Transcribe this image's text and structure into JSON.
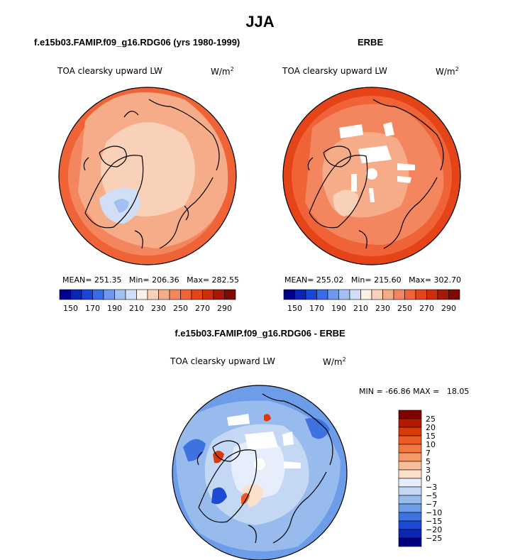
{
  "season_title": "JJA",
  "panels": [
    {
      "title": "f.e15b03.FAMIP.f09_g16.RDG06 (yrs 1980-1999)",
      "variable": "TOA clearsky upward LW",
      "units": "W/m",
      "units_exp": "2",
      "stats": "MEAN= 251.35   Min= 206.36   Max= 282.55"
    },
    {
      "title": "ERBE",
      "variable": "TOA clearsky upward LW",
      "units": "W/m",
      "units_exp": "2",
      "stats": "MEAN= 255.02   Min= 215.60   Max= 302.70"
    },
    {
      "title": "f.e15b03.FAMIP.f09_g16.RDG06 - ERBE",
      "variable": "TOA clearsky upward LW",
      "units": "W/m",
      "units_exp": "2",
      "stats": "MIN = -66.86 MAX =   18.05"
    }
  ],
  "chart_data": [
    {
      "type": "heatmap",
      "projection": "north polar stereographic",
      "title": "f.e15b03.FAMIP.f09_g16.RDG06 (yrs 1980-1999)",
      "variable": "TOA clearsky upward LW",
      "units": "W/m2",
      "mean": 251.35,
      "min": 206.36,
      "max": 282.55,
      "colorbar_ticks": [
        "150",
        "170",
        "190",
        "210",
        "230",
        "250",
        "270",
        "290"
      ],
      "colorbar_colors": [
        "#00008b",
        "#0a24b4",
        "#1a44d8",
        "#3a6ce8",
        "#6f98ee",
        "#a3bff2",
        "#d1dff6",
        "#fdf0e6",
        "#f9d0b8",
        "#f6ac88",
        "#f3865e",
        "#ef6337",
        "#e54419",
        "#cc2d0c",
        "#a81806",
        "#7f0a00"
      ]
    },
    {
      "type": "heatmap",
      "projection": "north polar stereographic",
      "title": "ERBE",
      "variable": "TOA clearsky upward LW",
      "units": "W/m2",
      "mean": 255.02,
      "min": 215.6,
      "max": 302.7,
      "colorbar_ticks": [
        "150",
        "170",
        "190",
        "210",
        "230",
        "250",
        "270",
        "290"
      ],
      "colorbar_colors": [
        "#00008b",
        "#0a24b4",
        "#1a44d8",
        "#3a6ce8",
        "#6f98ee",
        "#a3bff2",
        "#d1dff6",
        "#fdf0e6",
        "#f9d0b8",
        "#f6ac88",
        "#f3865e",
        "#ef6337",
        "#e54419",
        "#cc2d0c",
        "#a81806",
        "#7f0a00"
      ]
    },
    {
      "type": "heatmap",
      "projection": "north polar stereographic",
      "title": "f.e15b03.FAMIP.f09_g16.RDG06 - ERBE",
      "variable": "TOA clearsky upward LW",
      "units": "W/m2",
      "min": -66.86,
      "max": 18.05,
      "colorbar_ticks": [
        "25",
        "20",
        "15",
        "10",
        "7",
        "5",
        "3",
        "0",
        "-3",
        "-5",
        "-7",
        "-10",
        "-15",
        "-20",
        "-25"
      ],
      "colorbar_tick_labels": [
        "25",
        "20",
        "15",
        "10",
        "7",
        "5",
        "3",
        "0",
        "−3",
        "−5",
        "−7",
        "−10",
        "−15",
        "−20",
        "−25"
      ],
      "colorbar_colors": [
        "#7f0000",
        "#b31a00",
        "#d83a08",
        "#ee5a24",
        "#f3783f",
        "#f69966",
        "#f8bc98",
        "#fbe0cc",
        "#e6eefb",
        "#c4d8f4",
        "#98bbee",
        "#6d9ce8",
        "#3e72e0",
        "#1c4ad3",
        "#0b26b0",
        "#000080"
      ]
    }
  ]
}
